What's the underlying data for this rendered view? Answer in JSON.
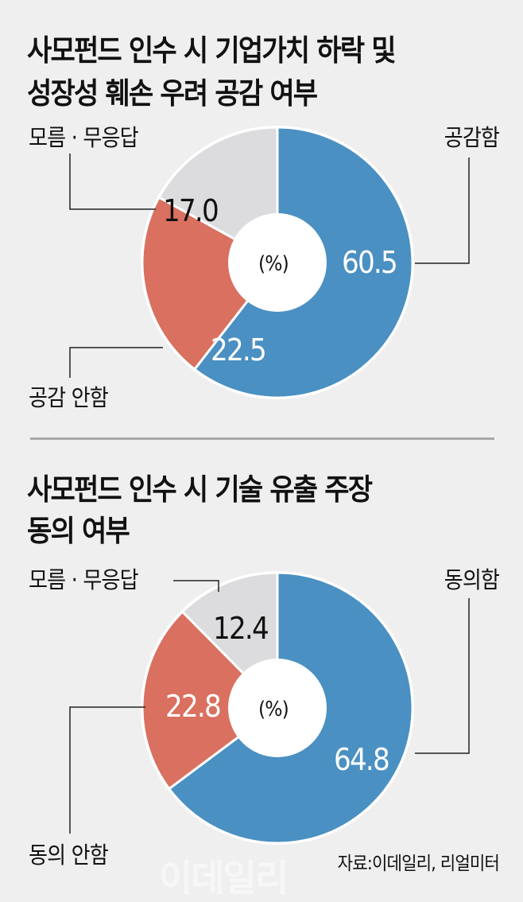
{
  "chart_data": [
    {
      "type": "pie",
      "variant": "donut",
      "title": "사모펀드 인수 시 기업가치 하락 및 성장성 훼손 우려 공감 여부",
      "unit": "(%)",
      "categories": [
        "공감함",
        "공감 안함",
        "모름 · 무응답"
      ],
      "values": [
        60.5,
        22.5,
        17.0
      ],
      "value_labels": [
        "60.5",
        "22.5",
        "17.0"
      ],
      "colors": [
        "#4a90c2",
        "#d97060",
        "#dcdcde"
      ],
      "start_angle": "12 o'clock, clockwise",
      "legend": "callout labels with leader lines"
    },
    {
      "type": "pie",
      "variant": "donut",
      "title": "사모펀드 인수 시 기술 유출 주장 동의 여부",
      "unit": "(%)",
      "categories": [
        "동의함",
        "동의 안함",
        "모름 · 무응답"
      ],
      "values": [
        64.8,
        22.8,
        12.4
      ],
      "value_labels": [
        "64.8",
        "22.8",
        "12.4"
      ],
      "colors": [
        "#4a90c2",
        "#d97060",
        "#dcdcde"
      ],
      "start_angle": "12 o'clock, clockwise",
      "legend": "callout labels with leader lines"
    }
  ],
  "chart1": {
    "title_line1": "사모펀드 인수 시 기업가치 하락 및",
    "title_line2": "성장성 훼손 우려 공감 여부",
    "unit": "(%)",
    "labels": {
      "agree": "공감함",
      "disagree": "공감 안함",
      "unknown": "모름 · 무응답"
    },
    "values": {
      "agree": "60.5",
      "disagree": "22.5",
      "unknown": "17.0"
    }
  },
  "chart2": {
    "title_line1": "사모펀드 인수 시 기술 유출 주장",
    "title_line2": "동의 여부",
    "unit": "(%)",
    "labels": {
      "agree": "동의함",
      "disagree": "동의 안함",
      "unknown": "모름 · 무응답"
    },
    "values": {
      "agree": "64.8",
      "disagree": "22.8",
      "unknown": "12.4"
    }
  },
  "footer": {
    "source": "자료:이데일리, 리얼미터",
    "watermark": "이데일리"
  },
  "colors": {
    "background": "#efefef",
    "agree": "#4a90c2",
    "disagree": "#d97060",
    "unknown": "#dcdcde",
    "divider": "#a8a8a8"
  }
}
